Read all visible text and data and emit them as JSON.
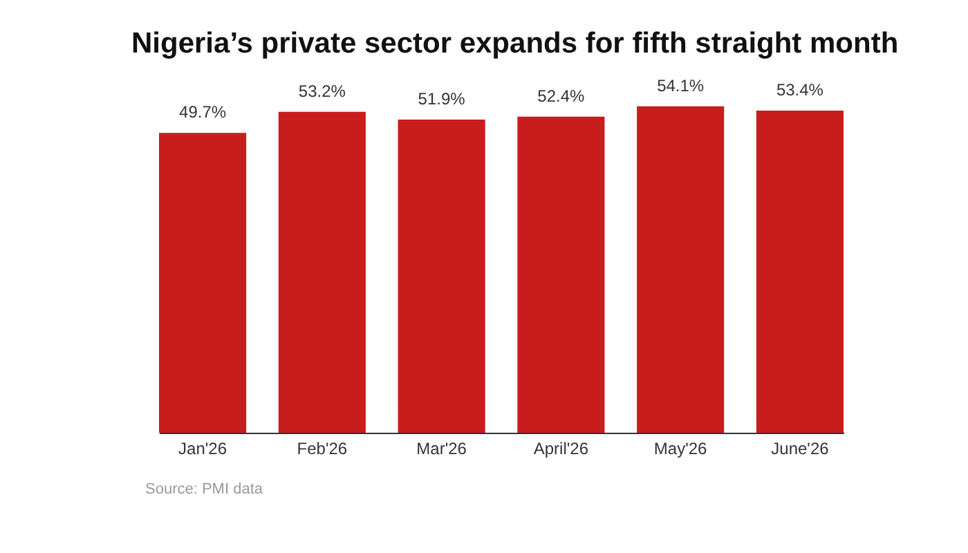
{
  "chart_data": {
    "type": "bar",
    "title": "Nigeria’s private sector expands for fifth straight month",
    "categories": [
      "Jan'26",
      "Feb'26",
      "Mar'26",
      "April'26",
      "May'26",
      "June'26"
    ],
    "values": [
      49.7,
      53.2,
      51.9,
      52.4,
      54.1,
      53.4
    ],
    "value_labels": [
      "49.7%",
      "53.2%",
      "51.9%",
      "52.4%",
      "54.1%",
      "53.4%"
    ],
    "color": "#c71e1d",
    "annotations": [
      "Source: PMI data"
    ]
  }
}
